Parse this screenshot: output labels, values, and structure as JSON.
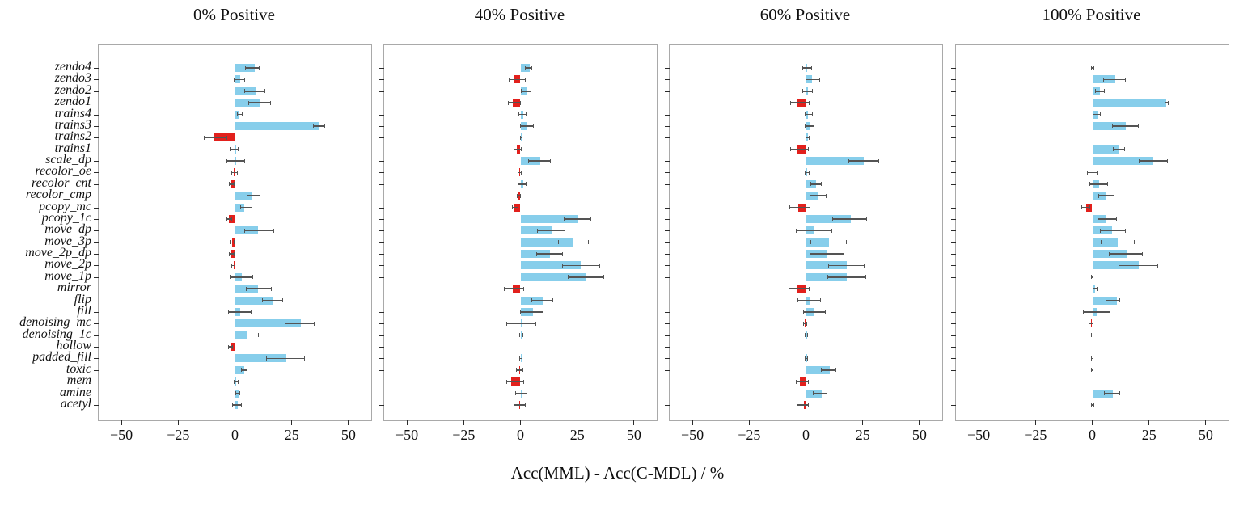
{
  "chart_data": {
    "type": "bar",
    "orientation": "horizontal",
    "xlabel": "Acc(MML) - Acc(C-MDL) / %",
    "xlim": [
      -60,
      60
    ],
    "xticks": [
      -50,
      -25,
      0,
      25,
      50
    ],
    "xtick_labels": [
      "−50",
      "−25",
      "0",
      "25",
      "50"
    ],
    "grid": false,
    "colors": {
      "positive_bar": "#87CEEB",
      "negative_bar": "#E2201C",
      "error_bar": "#545454",
      "frame": "#a9a9a9"
    },
    "categories": [
      "zendo4",
      "zendo3",
      "zendo2",
      "zendo1",
      "trains4",
      "trains3",
      "trains2",
      "trains1",
      "scale_dp",
      "recolor_oe",
      "recolor_cnt",
      "recolor_cmp",
      "pcopy_mc",
      "pcopy_1c",
      "move_dp",
      "move_3p",
      "move_2p_dp",
      "move_2p",
      "move_1p",
      "mirror",
      "flip",
      "fill",
      "denoising_mc",
      "denoising_1c",
      "hollow",
      "padded_fill",
      "toxic",
      "mem",
      "amine",
      "acetyl"
    ],
    "panels": [
      {
        "title": "0% Positive",
        "values": [
          8.7,
          2.2,
          9.0,
          11.0,
          2.0,
          37.0,
          -9.0,
          0.3,
          0.7,
          -0.3,
          -1.5,
          7.5,
          4.0,
          -2.5,
          10.0,
          -1.2,
          -1.5,
          -0.6,
          3.0,
          10.0,
          16.5,
          2.3,
          29.0,
          5.0,
          -2.0,
          22.5,
          4.2,
          0.6,
          1.5,
          1.2
        ],
        "errors": [
          [
            4.8,
            10.7
          ],
          [
            -0.2,
            4.2
          ],
          [
            4.2,
            13.1
          ],
          [
            6.0,
            15.5
          ],
          [
            1.0,
            3.3
          ],
          [
            34.5,
            39.5
          ],
          [
            -13.5,
            -3.6
          ],
          [
            -2.0,
            1.5
          ],
          [
            -3.7,
            4.2
          ],
          [
            -1.5,
            1.0
          ],
          [
            -2.5,
            -0.5
          ],
          [
            5.5,
            11.0
          ],
          [
            2.5,
            7.5
          ],
          [
            -3.5,
            -1.5
          ],
          [
            4.3,
            17.0
          ],
          [
            -2.2,
            -0.3
          ],
          [
            -2.5,
            -0.5
          ],
          [
            -1.3,
            0.0
          ],
          [
            -2.0,
            8.0
          ],
          [
            5.0,
            16.0
          ],
          [
            12.0,
            21.0
          ],
          [
            -3.0,
            7.0
          ],
          [
            22.0,
            35.0
          ],
          [
            0.0,
            10.5
          ],
          [
            -2.8,
            -1.2
          ],
          [
            14.0,
            30.5
          ],
          [
            3.0,
            5.3
          ],
          [
            -0.5,
            1.5
          ],
          [
            0.5,
            2.3
          ],
          [
            -1.0,
            3.0
          ]
        ]
      },
      {
        "title": "40% Positive",
        "values": [
          4.0,
          -2.7,
          3.2,
          -3.3,
          1.4,
          3.2,
          0.3,
          -1.5,
          8.6,
          -0.4,
          1.4,
          -0.8,
          -2.5,
          25.4,
          13.7,
          23.5,
          12.9,
          26.6,
          29.0,
          -3.5,
          9.9,
          5.4,
          0.2,
          0.5,
          0.0,
          0.3,
          -0.4,
          -4.1,
          0.6,
          -0.4
        ],
        "errors": [
          [
            2.0,
            5.0
          ],
          [
            -4.9,
            2.0
          ],
          [
            0.2,
            4.7
          ],
          [
            -5.4,
            0.1
          ],
          [
            -0.6,
            2.4
          ],
          [
            -0.1,
            5.8
          ],
          [
            0.0,
            0.8
          ],
          [
            -2.8,
            0.2
          ],
          [
            3.5,
            13.1
          ],
          [
            -1.2,
            0.5
          ],
          [
            -1.0,
            2.6
          ],
          [
            -1.5,
            0.0
          ],
          [
            -3.5,
            -1.0
          ],
          [
            19.3,
            31.0
          ],
          [
            7.4,
            19.5
          ],
          [
            16.7,
            29.8
          ],
          [
            7.2,
            18.6
          ],
          [
            18.5,
            34.9
          ],
          [
            20.9,
            36.6
          ],
          [
            -7.1,
            1.3
          ],
          [
            5.1,
            14.4
          ],
          [
            0.0,
            9.9
          ],
          [
            -6.2,
            6.6
          ],
          [
            -0.3,
            1.2
          ],
          [
            0.0,
            0.0
          ],
          [
            -0.2,
            0.8
          ],
          [
            -1.8,
            1.0
          ],
          [
            -6.2,
            1.6
          ],
          [
            -2.0,
            2.7
          ],
          [
            -3.0,
            2.0
          ]
        ]
      },
      {
        "title": "60% Positive",
        "values": [
          0.3,
          2.6,
          1.0,
          -4.2,
          1.0,
          1.5,
          0.8,
          -4.2,
          25.3,
          0.5,
          4.5,
          5.2,
          -3.3,
          19.6,
          3.9,
          10.1,
          9.3,
          18.1,
          18.1,
          -3.8,
          1.7,
          3.3,
          -0.4,
          0.2,
          0.0,
          0.3,
          10.5,
          -2.8,
          6.9,
          -1.0
        ],
        "errors": [
          [
            -1.4,
            2.4
          ],
          [
            0.0,
            6.0
          ],
          [
            -1.3,
            2.8
          ],
          [
            -6.8,
            1.4
          ],
          [
            -0.3,
            2.8
          ],
          [
            -0.2,
            3.6
          ],
          [
            0.0,
            1.5
          ],
          [
            -6.8,
            1.0
          ],
          [
            18.7,
            32.0
          ],
          [
            -0.4,
            1.3
          ],
          [
            2.0,
            6.9
          ],
          [
            1.8,
            9.0
          ],
          [
            -7.1,
            1.8
          ],
          [
            11.9,
            26.8
          ],
          [
            -4.2,
            11.3
          ],
          [
            2.0,
            17.9
          ],
          [
            1.8,
            16.8
          ],
          [
            10.1,
            25.6
          ],
          [
            9.5,
            26.2
          ],
          [
            -7.4,
            1.5
          ],
          [
            -3.6,
            6.5
          ],
          [
            -1.1,
            8.6
          ],
          [
            -1.2,
            0.5
          ],
          [
            -0.2,
            0.6
          ],
          [
            0.0,
            0.0
          ],
          [
            -0.3,
            0.8
          ],
          [
            6.9,
            13.1
          ],
          [
            -4.2,
            1.1
          ],
          [
            3.3,
            9.3
          ],
          [
            -3.8,
            1.1
          ]
        ]
      },
      {
        "title": "100% Positive",
        "values": [
          0.3,
          10.0,
          3.5,
          32.7,
          2.6,
          14.9,
          0.0,
          11.8,
          27.0,
          0.3,
          2.9,
          6.4,
          -2.7,
          6.4,
          8.9,
          11.2,
          15.0,
          20.5,
          0.2,
          1.4,
          10.7,
          2.1,
          -0.5,
          0.1,
          0.0,
          0.2,
          0.2,
          0.0,
          9.0,
          0.2
        ],
        "errors": [
          [
            -0.2,
            0.8
          ],
          [
            5.0,
            14.5
          ],
          [
            1.5,
            5.3
          ],
          [
            32.0,
            33.3
          ],
          [
            0.5,
            3.5
          ],
          [
            8.9,
            20.2
          ],
          [
            0.0,
            0.0
          ],
          [
            9.3,
            14.1
          ],
          [
            20.5,
            33.0
          ],
          [
            -2.0,
            2.0
          ],
          [
            -1.2,
            6.9
          ],
          [
            2.7,
            9.6
          ],
          [
            -4.5,
            -1.0
          ],
          [
            2.5,
            10.6
          ],
          [
            3.4,
            14.5
          ],
          [
            3.9,
            18.4
          ],
          [
            7.4,
            21.9
          ],
          [
            11.8,
            29.0
          ],
          [
            -0.2,
            0.5
          ],
          [
            0.4,
            2.2
          ],
          [
            6.2,
            12.1
          ],
          [
            -4.0,
            7.9
          ],
          [
            -1.3,
            0.3
          ],
          [
            -0.2,
            0.4
          ],
          [
            0.0,
            0.0
          ],
          [
            -0.2,
            0.5
          ],
          [
            -0.2,
            0.5
          ],
          [
            0.0,
            0.0
          ],
          [
            5.5,
            12.2
          ],
          [
            -0.3,
            0.6
          ]
        ]
      }
    ]
  }
}
